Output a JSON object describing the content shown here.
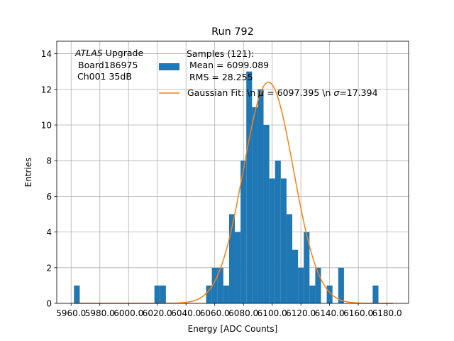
{
  "chart_data": {
    "type": "bar",
    "title": "Run 792",
    "xlabel": "Energy [ADC Counts]",
    "ylabel": "Entries",
    "xlim": [
      5950,
      6195
    ],
    "ylim": [
      0,
      14.7
    ],
    "grid": true,
    "legend_placement": "top-right",
    "annotation": {
      "italic_word": "ATLAS",
      "rest_line1": " Upgrade",
      "line2": "Board186975",
      "line3": "Ch001 35dB"
    },
    "x_ticks": [
      {
        "value": 5960,
        "label": "5960.0"
      },
      {
        "value": 5980,
        "label": "5980.0"
      },
      {
        "value": 6000,
        "label": "6000.0"
      },
      {
        "value": 6020,
        "label": "6020.0"
      },
      {
        "value": 6040,
        "label": "6040.0"
      },
      {
        "value": 6060,
        "label": "6060.0"
      },
      {
        "value": 6080,
        "label": "6080.0"
      },
      {
        "value": 6100,
        "label": "6100.0"
      },
      {
        "value": 6120,
        "label": "6120.0"
      },
      {
        "value": 6140,
        "label": "6140.0"
      },
      {
        "value": 6160,
        "label": "6160.0"
      },
      {
        "value": 6180,
        "label": "6180.0"
      }
    ],
    "y_ticks": [
      0,
      2,
      4,
      6,
      8,
      10,
      12,
      14
    ],
    "histogram": {
      "name_line1": "Samples (121):",
      "name_line2": "Mean = 6099.089",
      "name_line3": "RMS = 28.255",
      "color": "#1f77b4",
      "bin_width": 4,
      "bin_starts": [
        5962,
        6018,
        6022,
        6054,
        6058,
        6062,
        6066,
        6070,
        6074,
        6078,
        6082,
        6086,
        6090,
        6094,
        6098,
        6102,
        6106,
        6110,
        6114,
        6118,
        6122,
        6126,
        6130,
        6134,
        6138,
        6142,
        6146,
        6150,
        6154,
        6158,
        6162,
        6166,
        6170,
        6174,
        6178,
        6182,
        6186
      ],
      "counts": [
        1,
        1,
        1,
        1,
        2,
        2,
        1,
        5,
        4,
        8,
        13,
        11,
        12,
        10,
        7,
        8,
        7,
        5,
        3,
        2,
        4,
        1,
        2,
        0,
        1,
        0,
        2,
        0,
        0,
        0,
        0,
        0,
        1,
        0,
        0,
        0,
        0
      ]
    },
    "gaussian_fit": {
      "name": "Gaussian Fit: \\n $\\mu$ = 6097.395 \\n $\\sigma$=17.394",
      "label_prefix": "Gaussian Fit: \\n ",
      "label_mu_symbol": "μ",
      "label_mid": " = 6097.395 \\n ",
      "label_sigma_symbol": "σ",
      "label_suffix": "=17.394",
      "mu": 6097.395,
      "sigma": 17.394,
      "amplitude": 12.4,
      "color": "#ff7f0e"
    }
  }
}
